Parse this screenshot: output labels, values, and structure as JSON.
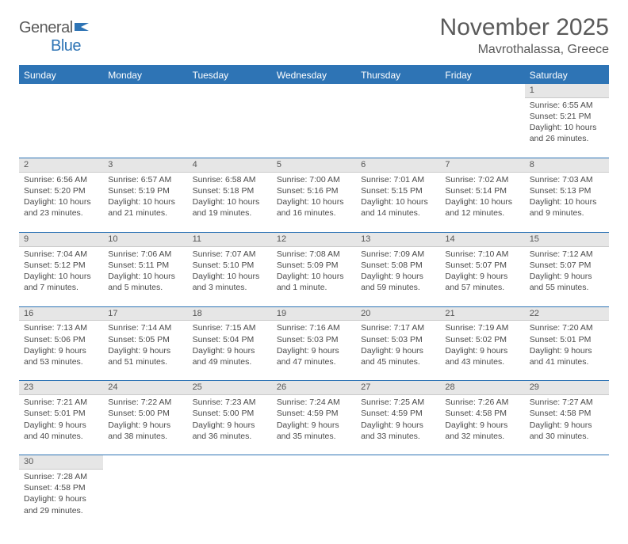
{
  "logo": {
    "text1": "General",
    "text2": "Blue"
  },
  "title": "November 2025",
  "location": "Mavrothalassa, Greece",
  "colors": {
    "header_bg": "#2e74b5",
    "header_text": "#ffffff",
    "daynum_bg": "#e6e6e6",
    "text": "#4a4a4a",
    "border": "#2e74b5"
  },
  "weekdays": [
    "Sunday",
    "Monday",
    "Tuesday",
    "Wednesday",
    "Thursday",
    "Friday",
    "Saturday"
  ],
  "weeks": [
    [
      null,
      null,
      null,
      null,
      null,
      null,
      {
        "n": "1",
        "sr": "6:55 AM",
        "ss": "5:21 PM",
        "dl": "10 hours and 26 minutes."
      }
    ],
    [
      {
        "n": "2",
        "sr": "6:56 AM",
        "ss": "5:20 PM",
        "dl": "10 hours and 23 minutes."
      },
      {
        "n": "3",
        "sr": "6:57 AM",
        "ss": "5:19 PM",
        "dl": "10 hours and 21 minutes."
      },
      {
        "n": "4",
        "sr": "6:58 AM",
        "ss": "5:18 PM",
        "dl": "10 hours and 19 minutes."
      },
      {
        "n": "5",
        "sr": "7:00 AM",
        "ss": "5:16 PM",
        "dl": "10 hours and 16 minutes."
      },
      {
        "n": "6",
        "sr": "7:01 AM",
        "ss": "5:15 PM",
        "dl": "10 hours and 14 minutes."
      },
      {
        "n": "7",
        "sr": "7:02 AM",
        "ss": "5:14 PM",
        "dl": "10 hours and 12 minutes."
      },
      {
        "n": "8",
        "sr": "7:03 AM",
        "ss": "5:13 PM",
        "dl": "10 hours and 9 minutes."
      }
    ],
    [
      {
        "n": "9",
        "sr": "7:04 AM",
        "ss": "5:12 PM",
        "dl": "10 hours and 7 minutes."
      },
      {
        "n": "10",
        "sr": "7:06 AM",
        "ss": "5:11 PM",
        "dl": "10 hours and 5 minutes."
      },
      {
        "n": "11",
        "sr": "7:07 AM",
        "ss": "5:10 PM",
        "dl": "10 hours and 3 minutes."
      },
      {
        "n": "12",
        "sr": "7:08 AM",
        "ss": "5:09 PM",
        "dl": "10 hours and 1 minute."
      },
      {
        "n": "13",
        "sr": "7:09 AM",
        "ss": "5:08 PM",
        "dl": "9 hours and 59 minutes."
      },
      {
        "n": "14",
        "sr": "7:10 AM",
        "ss": "5:07 PM",
        "dl": "9 hours and 57 minutes."
      },
      {
        "n": "15",
        "sr": "7:12 AM",
        "ss": "5:07 PM",
        "dl": "9 hours and 55 minutes."
      }
    ],
    [
      {
        "n": "16",
        "sr": "7:13 AM",
        "ss": "5:06 PM",
        "dl": "9 hours and 53 minutes."
      },
      {
        "n": "17",
        "sr": "7:14 AM",
        "ss": "5:05 PM",
        "dl": "9 hours and 51 minutes."
      },
      {
        "n": "18",
        "sr": "7:15 AM",
        "ss": "5:04 PM",
        "dl": "9 hours and 49 minutes."
      },
      {
        "n": "19",
        "sr": "7:16 AM",
        "ss": "5:03 PM",
        "dl": "9 hours and 47 minutes."
      },
      {
        "n": "20",
        "sr": "7:17 AM",
        "ss": "5:03 PM",
        "dl": "9 hours and 45 minutes."
      },
      {
        "n": "21",
        "sr": "7:19 AM",
        "ss": "5:02 PM",
        "dl": "9 hours and 43 minutes."
      },
      {
        "n": "22",
        "sr": "7:20 AM",
        "ss": "5:01 PM",
        "dl": "9 hours and 41 minutes."
      }
    ],
    [
      {
        "n": "23",
        "sr": "7:21 AM",
        "ss": "5:01 PM",
        "dl": "9 hours and 40 minutes."
      },
      {
        "n": "24",
        "sr": "7:22 AM",
        "ss": "5:00 PM",
        "dl": "9 hours and 38 minutes."
      },
      {
        "n": "25",
        "sr": "7:23 AM",
        "ss": "5:00 PM",
        "dl": "9 hours and 36 minutes."
      },
      {
        "n": "26",
        "sr": "7:24 AM",
        "ss": "4:59 PM",
        "dl": "9 hours and 35 minutes."
      },
      {
        "n": "27",
        "sr": "7:25 AM",
        "ss": "4:59 PM",
        "dl": "9 hours and 33 minutes."
      },
      {
        "n": "28",
        "sr": "7:26 AM",
        "ss": "4:58 PM",
        "dl": "9 hours and 32 minutes."
      },
      {
        "n": "29",
        "sr": "7:27 AM",
        "ss": "4:58 PM",
        "dl": "9 hours and 30 minutes."
      }
    ],
    [
      {
        "n": "30",
        "sr": "7:28 AM",
        "ss": "4:58 PM",
        "dl": "9 hours and 29 minutes."
      },
      null,
      null,
      null,
      null,
      null,
      null
    ]
  ],
  "labels": {
    "sunrise": "Sunrise:",
    "sunset": "Sunset:",
    "daylight": "Daylight:"
  }
}
